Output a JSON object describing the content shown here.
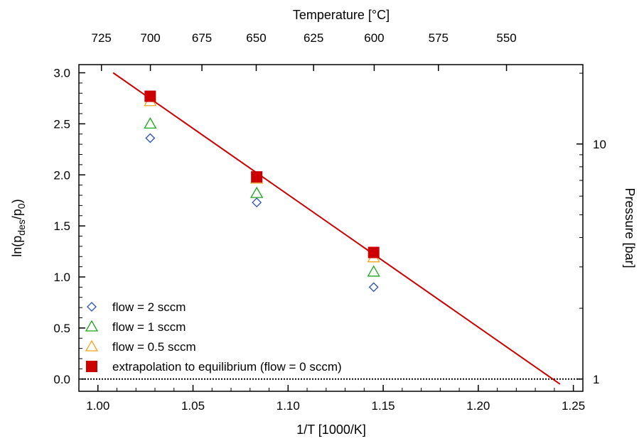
{
  "chart_data": {
    "type": "scatter",
    "xlabel": "1/T [1000/K]",
    "ylabel_parts": [
      "ln(p",
      "des",
      "/p",
      "0",
      ")"
    ],
    "top_xlabel": "Temperature [°C]",
    "right_ylabel": "Pressure [bar]",
    "xlim": [
      0.99,
      1.255
    ],
    "ylim": [
      -0.12,
      3.08
    ],
    "x_ticks": [
      1.0,
      1.05,
      1.1,
      1.15,
      1.2,
      1.25
    ],
    "x_tick_labels": [
      "1.00",
      "1.05",
      "1.10",
      "1.15",
      "1.20",
      "1.25"
    ],
    "y_ticks": [
      0.0,
      0.5,
      1.0,
      1.5,
      2.0,
      2.5,
      3.0
    ],
    "y_tick_labels": [
      "0.0",
      "0.5",
      "1.0",
      "1.5",
      "2.0",
      "2.5",
      "3.0"
    ],
    "top_ticks_celsius": [
      725,
      700,
      675,
      650,
      625,
      600,
      575,
      550
    ],
    "top_tick_labels": [
      "725",
      "700",
      "675",
      "650",
      "625",
      "600",
      "575",
      "550"
    ],
    "right_major_ticks_bar": [
      1,
      10
    ],
    "right_tick_labels": [
      "1",
      "10"
    ],
    "series": [
      {
        "name": "flow = 2 sccm",
        "marker": "diamond",
        "color": "#2a4fb0",
        "x": [
          1.0275,
          1.0835,
          1.145
        ],
        "y": [
          2.36,
          1.73,
          0.9
        ]
      },
      {
        "name": "flow = 1 sccm",
        "marker": "triangle",
        "color": "#1aa51a",
        "x": [
          1.0275,
          1.0835,
          1.145
        ],
        "y": [
          2.5,
          1.82,
          1.05
        ]
      },
      {
        "name": "flow = 0.5 sccm",
        "marker": "triangle",
        "color": "#f2a51a",
        "x": [
          1.0275,
          1.0835,
          1.145
        ],
        "y": [
          2.72,
          1.96,
          1.19
        ]
      },
      {
        "name": "extrapolation to equilibrium (flow = 0 sccm)",
        "marker": "square",
        "color": "#cc0000",
        "x": [
          1.0275,
          1.0835,
          1.145
        ],
        "y": [
          2.77,
          1.98,
          1.24
        ]
      }
    ],
    "fit_line": {
      "color": "#cc0000",
      "x": [
        1.008,
        1.243
      ],
      "y": [
        3.0,
        -0.05
      ]
    },
    "zero_line": {
      "y": 0.0,
      "style": "dotted",
      "color": "#000000"
    },
    "legend_position": "bottom-left",
    "grid": false
  }
}
